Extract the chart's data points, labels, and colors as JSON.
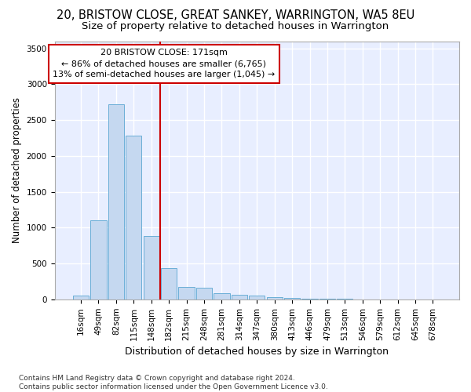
{
  "title": "20, BRISTOW CLOSE, GREAT SANKEY, WARRINGTON, WA5 8EU",
  "subtitle": "Size of property relative to detached houses in Warrington",
  "xlabel": "Distribution of detached houses by size in Warrington",
  "ylabel": "Number of detached properties",
  "categories": [
    "16sqm",
    "49sqm",
    "82sqm",
    "115sqm",
    "148sqm",
    "182sqm",
    "215sqm",
    "248sqm",
    "281sqm",
    "314sqm",
    "347sqm",
    "380sqm",
    "413sqm",
    "446sqm",
    "479sqm",
    "513sqm",
    "546sqm",
    "579sqm",
    "612sqm",
    "645sqm",
    "678sqm"
  ],
  "values": [
    50,
    1100,
    2725,
    2285,
    880,
    430,
    170,
    165,
    90,
    60,
    50,
    35,
    25,
    5,
    5,
    5,
    2,
    2,
    2,
    0,
    2
  ],
  "bar_color": "#c5d8f0",
  "bar_edgecolor": "#6aaed6",
  "vline_color": "#cc0000",
  "vline_x": 5,
  "annotation_line1": "20 BRISTOW CLOSE: 171sqm",
  "annotation_line2": "← 86% of detached houses are smaller (6,765)",
  "annotation_line3": "13% of semi-detached houses are larger (1,045) →",
  "annotation_box_facecolor": "#ffffff",
  "annotation_box_edgecolor": "#cc0000",
  "ylim": [
    0,
    3600
  ],
  "yticks": [
    0,
    500,
    1000,
    1500,
    2000,
    2500,
    3000,
    3500
  ],
  "plot_bg_color": "#e8eeff",
  "fig_bg_color": "#ffffff",
  "grid_color": "#ffffff",
  "footer": "Contains HM Land Registry data © Crown copyright and database right 2024.\nContains public sector information licensed under the Open Government Licence v3.0.",
  "title_fontsize": 10.5,
  "subtitle_fontsize": 9.5,
  "xlabel_fontsize": 9,
  "ylabel_fontsize": 8.5,
  "tick_fontsize": 7.5,
  "annotation_fontsize": 8,
  "footer_fontsize": 6.5
}
